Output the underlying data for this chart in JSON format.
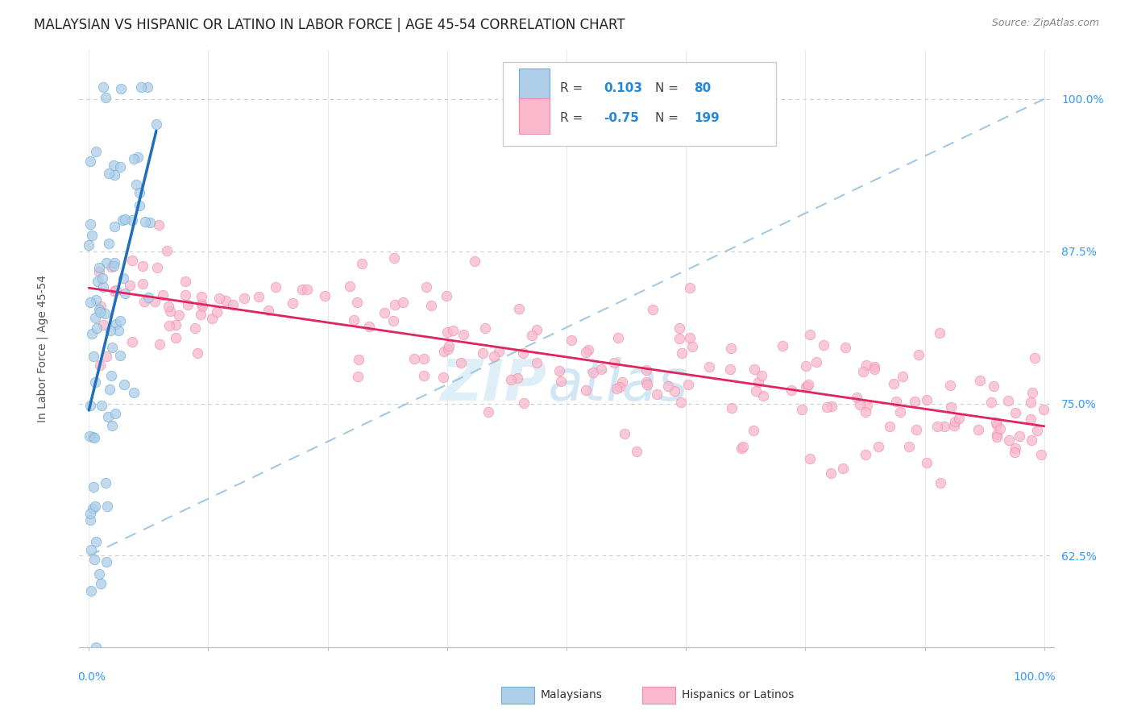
{
  "title": "MALAYSIAN VS HISPANIC OR LATINO IN LABOR FORCE | AGE 45-54 CORRELATION CHART",
  "source": "Source: ZipAtlas.com",
  "ylabel": "In Labor Force | Age 45-54",
  "r_malaysian": 0.103,
  "n_malaysian": 80,
  "r_hispanic": -0.75,
  "n_hispanic": 199,
  "blue_dot_face": "#aecde8",
  "blue_dot_edge": "#6aafd6",
  "pink_dot_face": "#f9b8cb",
  "pink_dot_edge": "#f48aaa",
  "blue_line_color": "#1f6fbc",
  "pink_line_color": "#e0245e",
  "dash_line_color": "#92c0e0",
  "y_min": 0.55,
  "y_max": 1.04,
  "x_min": 0.0,
  "x_max": 1.0,
  "yticks": [
    0.625,
    0.75,
    0.875,
    1.0
  ],
  "ytick_labels": [
    "62.5%",
    "75.0%",
    "87.5%",
    "100.0%"
  ],
  "tick_color": "#3399ff",
  "grid_color": "#cccccc",
  "title_fontsize": 12,
  "source_fontsize": 9,
  "tick_fontsize": 10,
  "ylabel_fontsize": 10
}
